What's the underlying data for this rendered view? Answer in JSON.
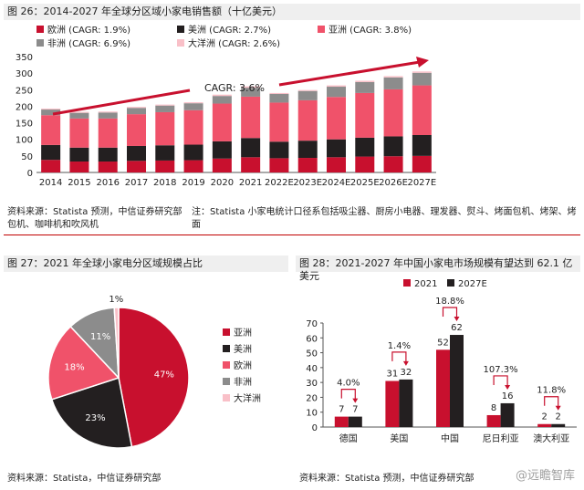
{
  "fig26": {
    "header": "图 26：2014-2027 年全球分区域小家电销售额（十亿美元）",
    "source": "资料来源：Statista 预测，中信证券研究部",
    "note_line1": "注：Statista 小家电统计口径系包括吸尘器、厨房小电器、理发器、熨斗、烤面包机、烤架、烤面",
    "note_line2": "包机、咖啡机和吹风机"
  },
  "fig27": {
    "header": "图 27：2021 年全球小家电分区域规模占比",
    "source": "资料来源：Statista，中信证券研究部"
  },
  "fig28": {
    "header": "图 28：2021-2027 年中国小家电市场规模有望达到 62.1 亿美元",
    "source": "资料来源：Statista 预测，中信证券研究部"
  },
  "watermark": "@远瞻智库",
  "colors": {
    "europe": "#c8102e",
    "americas": "#231f20",
    "asia": "#f0526a",
    "africa": "#8c8c8c",
    "oceania": "#f9c0c8",
    "arrow": "#c8102e"
  },
  "chart_data": [
    {
      "type": "bar",
      "stacked": true,
      "categories": [
        "2014",
        "2015",
        "2016",
        "2017",
        "2018",
        "2019",
        "2020",
        "2021",
        "2022E",
        "2023E",
        "2024E",
        "2025E",
        "2026E",
        "2027E"
      ],
      "series": [
        {
          "name": "欧洲 (CAGR: 1.9%)",
          "color": "#c8102e",
          "values": [
            38,
            33,
            33,
            35,
            36,
            37,
            42,
            46,
            43,
            44,
            46,
            48,
            49,
            50
          ]
        },
        {
          "name": "美洲 (CAGR: 2.7%)",
          "color": "#231f20",
          "values": [
            45,
            42,
            42,
            45,
            46,
            47,
            52,
            58,
            50,
            52,
            54,
            57,
            60,
            63
          ]
        },
        {
          "name": "亚洲 (CAGR: 3.8%)",
          "color": "#f0526a",
          "values": [
            90,
            88,
            88,
            96,
            100,
            104,
            114,
            125,
            118,
            122,
            128,
            135,
            142,
            150
          ]
        },
        {
          "name": "非洲 (CAGR: 6.9%)",
          "color": "#8c8c8c",
          "values": [
            17,
            17,
            18,
            19,
            20,
            21,
            23,
            27,
            26,
            28,
            31,
            33,
            36,
            38
          ]
        },
        {
          "name": "大洋洲 (CAGR: 2.6%)",
          "color": "#f9c0c8",
          "values": [
            3,
            3,
            3,
            3,
            3,
            3,
            4,
            4,
            3,
            3,
            4,
            4,
            4,
            4
          ]
        }
      ],
      "ylim": [
        0,
        350
      ],
      "yticks": [
        "0",
        "50",
        "100",
        "150",
        "200",
        "250",
        "300",
        "350"
      ],
      "annotation": "CAGR: 3.6%",
      "legend": "top",
      "grid": false
    },
    {
      "type": "pie",
      "labels": [
        "亚洲",
        "美洲",
        "欧洲",
        "非洲",
        "大洋洲"
      ],
      "values": [
        47,
        23,
        18,
        11,
        1
      ],
      "value_labels": [
        "47%",
        "23%",
        "18%",
        "11%",
        "1%"
      ],
      "colors": [
        "#c8102e",
        "#231f20",
        "#f0526a",
        "#8c8c8c",
        "#f9c0c8"
      ],
      "legend": "right"
    },
    {
      "type": "bar",
      "categories": [
        "德国",
        "美国",
        "中国",
        "尼日利亚",
        "澳大利亚"
      ],
      "series": [
        {
          "name": "2021",
          "color": "#c8102e",
          "values": [
            7,
            31,
            52,
            8,
            2
          ]
        },
        {
          "name": "2027E",
          "color": "#231f20",
          "values": [
            7,
            32,
            62,
            16,
            2
          ]
        }
      ],
      "value_labels_2021": [
        "7",
        "31",
        "52",
        "8",
        "2"
      ],
      "value_labels_2027": [
        "7",
        "32",
        "62",
        "16",
        "2"
      ],
      "growth_labels": [
        "4.0%",
        "1.4%",
        "18.8%",
        "107.3%",
        "11.8%"
      ],
      "ylim": [
        0,
        70
      ],
      "yticks": [
        "0",
        "10",
        "20",
        "30",
        "40",
        "50",
        "60",
        "70"
      ],
      "legend": "top",
      "grid": false
    }
  ]
}
